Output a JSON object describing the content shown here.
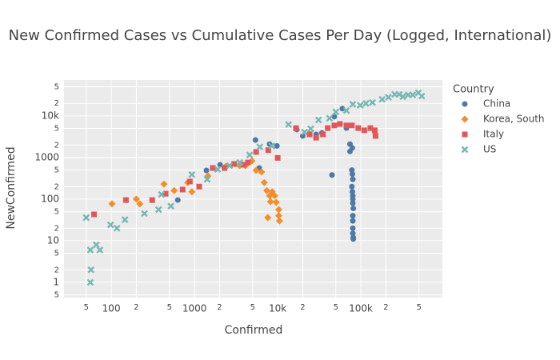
{
  "chart_data": {
    "type": "scatter",
    "title": "New Confirmed Cases vs Cumulative Cases Per Day (Logged, International)",
    "x_label": "Confirmed",
    "y_label": "NewConfirmed",
    "legend_title": "Country",
    "xlog": true,
    "ylog": true,
    "grid": true,
    "legend": "right",
    "xlim": [
      27,
      955000
    ],
    "ylim": [
      0.43,
      73000
    ],
    "xticks": [
      {
        "value": 50,
        "label": "5"
      },
      100,
      {
        "value": 200,
        "label": "2"
      },
      {
        "value": 500,
        "label": "5"
      },
      1000,
      {
        "value": 2000,
        "label": "2"
      },
      {
        "value": 5000,
        "label": "5"
      },
      {
        "value": 10000,
        "label": "10k"
      },
      {
        "value": 20000,
        "label": "2"
      },
      {
        "value": 50000,
        "label": "5"
      },
      {
        "value": 100000,
        "label": "100k"
      },
      {
        "value": 200000,
        "label": "2"
      },
      {
        "value": 500000,
        "label": "5"
      }
    ],
    "yticks": [
      {
        "value": 0.5,
        "label": "5"
      },
      1,
      {
        "value": 2,
        "label": "2"
      },
      {
        "value": 5,
        "label": "5"
      },
      10,
      {
        "value": 20,
        "label": "2"
      },
      {
        "value": 50,
        "label": "5"
      },
      100,
      {
        "value": 200,
        "label": "2"
      },
      {
        "value": 500,
        "label": "5"
      },
      1000,
      {
        "value": 2000,
        "label": "2"
      },
      {
        "value": 5000,
        "label": "5"
      },
      {
        "value": 10000,
        "label": "10k"
      },
      {
        "value": 20000,
        "label": "2"
      },
      {
        "value": 50000,
        "label": "5"
      }
    ],
    "series": [
      {
        "name": "China",
        "color": "#4e79a7",
        "symbol": "circle",
        "x": [
          630,
          1390,
          2030,
          5400,
          6000,
          8000,
          9800,
          17000,
          20000,
          24000,
          29000,
          34000,
          40000,
          48000,
          60000,
          67000,
          74000,
          79000,
          74000,
          45000,
          78000,
          79000,
          80000,
          78000,
          79000,
          80000,
          80000,
          80000,
          81000,
          80000,
          80000,
          80000,
          80000,
          81000,
          81000
        ],
        "values": [
          95,
          490,
          670,
          2640,
          560,
          2100,
          1900,
          4700,
          3300,
          3700,
          3600,
          3900,
          5100,
          9600,
          15000,
          5100,
          2100,
          1700,
          1400,
          380,
          500,
          400,
          300,
          200,
          150,
          120,
          100,
          80,
          60,
          40,
          30,
          20,
          15,
          12,
          11
        ]
      },
      {
        "name": "Korea, South",
        "color": "#f28e2b",
        "symbol": "diamond",
        "x": [
          102,
          200,
          220,
          430,
          570,
          830,
          930,
          1450,
          2370,
          3500,
          4100,
          4900,
          5500,
          6400,
          6900,
          7400,
          7600,
          8000,
          8200,
          8600,
          9200,
          9600,
          10300,
          10300,
          10500
        ],
        "values": [
          77,
          100,
          77,
          230,
          160,
          250,
          150,
          360,
          610,
          640,
          640,
          830,
          490,
          450,
          250,
          160,
          36,
          120,
          87,
          150,
          120,
          84,
          56,
          40,
          30
        ]
      },
      {
        "name": "Italy",
        "color": "#e15759",
        "symbol": "square",
        "x": [
          62,
          150,
          310,
          450,
          720,
          880,
          1140,
          1660,
          2300,
          3000,
          3900,
          4400,
          5500,
          7700,
          10000,
          16600,
          24200,
          29000,
          35000,
          40000,
          48000,
          56000,
          67000,
          78000,
          93000,
          110000,
          130000,
          147000,
          150000
        ],
        "values": [
          43,
          95,
          95,
          135,
          170,
          265,
          200,
          560,
          560,
          700,
          670,
          760,
          1360,
          1500,
          980,
          5100,
          3600,
          3000,
          3600,
          5100,
          5900,
          6400,
          5900,
          5900,
          5100,
          4500,
          5100,
          4500,
          3300
        ]
      },
      {
        "name": "US",
        "color": "#76b7b2",
        "symbol": "x",
        "x": [
          50,
          56,
          66,
          73,
          57,
          56,
          98,
          117,
          146,
          250,
          370,
          520,
          400,
          930,
          1420,
          1900,
          2640,
          3500,
          4600,
          6100,
          8500,
          13500,
          21000,
          25000,
          31000,
          42000,
          50000,
          67000,
          80000,
          98000,
          115000,
          138000,
          180000,
          214000,
          255000,
          290000,
          320000,
          370000,
          420000,
          490000,
          540000
        ],
        "values": [
          36,
          6,
          8,
          6,
          2,
          1,
          24,
          20,
          32,
          45,
          56,
          68,
          130,
          390,
          300,
          520,
          640,
          760,
          1150,
          1800,
          1900,
          6200,
          4100,
          4900,
          8000,
          8800,
          12500,
          13500,
          19000,
          18000,
          20000,
          21000,
          25000,
          28000,
          33000,
          33000,
          29000,
          32000,
          32000,
          36000,
          30000
        ]
      }
    ]
  }
}
